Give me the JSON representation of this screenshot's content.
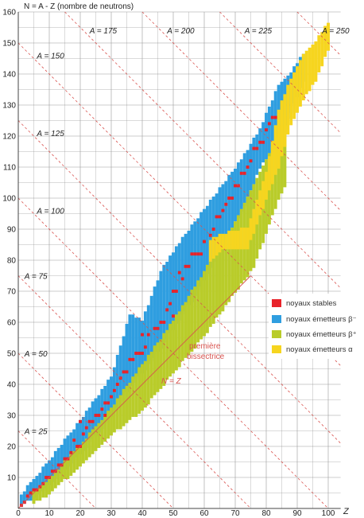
{
  "chart_data": {
    "type": "scatter",
    "title": "",
    "ylabel": "N = A - Z (nombre de neutrons)",
    "xlabel": "Z",
    "xlim": [
      0,
      104
    ],
    "ylim": [
      0,
      160
    ],
    "x_ticks": [
      0,
      10,
      20,
      30,
      40,
      50,
      60,
      70,
      80,
      90,
      100
    ],
    "y_ticks": [
      10,
      20,
      30,
      40,
      50,
      60,
      70,
      80,
      90,
      100,
      110,
      120,
      130,
      140,
      150,
      160
    ],
    "grid": true,
    "legend_position": "right",
    "colors": {
      "stable": "#e8232a",
      "beta_minus": "#2f9ee0",
      "beta_plus": "#b9cc2a",
      "alpha": "#f6d51f",
      "isobar_line": "#d9534f",
      "grid": "#9a9a9a"
    },
    "series": [
      {
        "key": "stable",
        "name": "noyaux stables"
      },
      {
        "key": "beta_minus",
        "name": "noyaux émetteurs β⁻"
      },
      {
        "key": "beta_plus",
        "name": "noyaux émetteurs β⁺"
      },
      {
        "key": "alpha",
        "name": "noyaux émetteurs α"
      }
    ],
    "stability_valley_N_at_Z": [
      [
        0,
        0
      ],
      [
        10,
        10
      ],
      [
        20,
        22
      ],
      [
        30,
        35
      ],
      [
        40,
        50
      ],
      [
        50,
        69
      ],
      [
        60,
        82
      ],
      [
        70,
        100
      ],
      [
        80,
        120
      ],
      [
        90,
        142
      ],
      [
        100,
        155
      ]
    ],
    "stable_points": [
      [
        1,
        1
      ],
      [
        2,
        2
      ],
      [
        3,
        4
      ],
      [
        4,
        5
      ],
      [
        5,
        6
      ],
      [
        6,
        6
      ],
      [
        7,
        7
      ],
      [
        8,
        8
      ],
      [
        9,
        10
      ],
      [
        10,
        10
      ],
      [
        11,
        12
      ],
      [
        12,
        12
      ],
      [
        13,
        14
      ],
      [
        14,
        14
      ],
      [
        15,
        16
      ],
      [
        16,
        16
      ],
      [
        17,
        18
      ],
      [
        18,
        22
      ],
      [
        19,
        20
      ],
      [
        20,
        20
      ],
      [
        20,
        28
      ],
      [
        21,
        24
      ],
      [
        22,
        26
      ],
      [
        23,
        28
      ],
      [
        24,
        28
      ],
      [
        25,
        30
      ],
      [
        26,
        30
      ],
      [
        27,
        32
      ],
      [
        28,
        30
      ],
      [
        28,
        34
      ],
      [
        29,
        34
      ],
      [
        30,
        36
      ],
      [
        31,
        38
      ],
      [
        32,
        40
      ],
      [
        33,
        42
      ],
      [
        34,
        44
      ],
      [
        35,
        44
      ],
      [
        36,
        48
      ],
      [
        37,
        48
      ],
      [
        38,
        50
      ],
      [
        39,
        50
      ],
      [
        40,
        50
      ],
      [
        40,
        56
      ],
      [
        41,
        52
      ],
      [
        42,
        56
      ],
      [
        44,
        58
      ],
      [
        45,
        58
      ],
      [
        46,
        60
      ],
      [
        47,
        60
      ],
      [
        48,
        64
      ],
      [
        49,
        66
      ],
      [
        50,
        62
      ],
      [
        50,
        70
      ],
      [
        51,
        70
      ],
      [
        52,
        76
      ],
      [
        53,
        74
      ],
      [
        54,
        78
      ],
      [
        55,
        78
      ],
      [
        56,
        82
      ],
      [
        57,
        82
      ],
      [
        58,
        82
      ],
      [
        59,
        82
      ],
      [
        60,
        86
      ],
      [
        62,
        88
      ],
      [
        63,
        90
      ],
      [
        64,
        94
      ],
      [
        65,
        94
      ],
      [
        66,
        96
      ],
      [
        67,
        98
      ],
      [
        68,
        100
      ],
      [
        69,
        100
      ],
      [
        70,
        104
      ],
      [
        71,
        104
      ],
      [
        72,
        108
      ],
      [
        73,
        108
      ],
      [
        74,
        110
      ],
      [
        75,
        112
      ],
      [
        76,
        116
      ],
      [
        77,
        116
      ],
      [
        78,
        118
      ],
      [
        79,
        118
      ],
      [
        80,
        122
      ],
      [
        81,
        124
      ],
      [
        82,
        126
      ],
      [
        83,
        126
      ]
    ],
    "regions": [
      {
        "key": "beta_minus",
        "band": [
          [
            1,
            1,
            4
          ],
          [
            5,
            4,
            9
          ],
          [
            10,
            8,
            15
          ],
          [
            20,
            18,
            28
          ],
          [
            30,
            30,
            42
          ],
          [
            36,
            40,
            62
          ],
          [
            40,
            44,
            60
          ],
          [
            46,
            52,
            76
          ],
          [
            54,
            64,
            88
          ],
          [
            60,
            74,
            96
          ],
          [
            66,
            86,
            104
          ],
          [
            72,
            96,
            112
          ],
          [
            78,
            110,
            122
          ],
          [
            84,
            120,
            136
          ],
          [
            88,
            128,
            140
          ],
          [
            92,
            138,
            146
          ]
        ]
      },
      {
        "key": "beta_plus",
        "band": [
          [
            5,
            2,
            5
          ],
          [
            10,
            5,
            9
          ],
          [
            20,
            14,
            20
          ],
          [
            30,
            24,
            32
          ],
          [
            40,
            32,
            46
          ],
          [
            50,
            44,
            60
          ],
          [
            60,
            56,
            76
          ],
          [
            70,
            70,
            92
          ],
          [
            76,
            78,
            104
          ],
          [
            84,
            100,
            120
          ],
          [
            86,
            104,
            126
          ]
        ]
      },
      {
        "key": "alpha",
        "band": [
          [
            62,
            80,
            86
          ],
          [
            66,
            84,
            88
          ],
          [
            74,
            84,
            90
          ],
          [
            80,
            100,
            108
          ],
          [
            84,
            110,
            128
          ],
          [
            88,
            124,
            138
          ],
          [
            92,
            132,
            146
          ],
          [
            96,
            138,
            150
          ],
          [
            100,
            148,
            156
          ]
        ]
      }
    ],
    "isobars": [
      {
        "A": 25,
        "label": "A = 25"
      },
      {
        "A": 50,
        "label": "A = 50"
      },
      {
        "A": 75,
        "label": "A = 75"
      },
      {
        "A": 100,
        "label": "A = 100"
      },
      {
        "A": 125,
        "label": "A = 125"
      },
      {
        "A": 150,
        "label": "A = 150"
      },
      {
        "A": 175,
        "label": "A = 175"
      },
      {
        "A": 200,
        "label": "A = 200"
      },
      {
        "A": 225,
        "label": "A = 225"
      },
      {
        "A": 250,
        "label": "A = 250"
      }
    ],
    "annotations": {
      "bisector_label_line1": "première",
      "bisector_label_line2": "bissectrice",
      "nz_label": "N = Z"
    }
  }
}
